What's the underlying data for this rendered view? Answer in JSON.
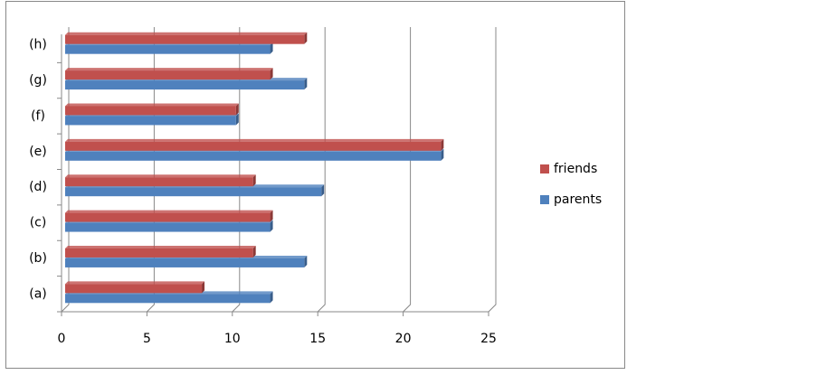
{
  "chart_data": {
    "type": "bar",
    "orientation": "horizontal",
    "categories": [
      "(a)",
      "(b)",
      "(c)",
      "(d)",
      "(e)",
      "(f)",
      "(g)",
      "(h)"
    ],
    "series": [
      {
        "name": "parents",
        "color": "#4f81bd",
        "values": [
          12,
          14,
          12,
          15,
          22,
          10,
          14,
          12
        ]
      },
      {
        "name": "friends",
        "color": "#c0504d",
        "values": [
          8,
          11,
          12,
          11,
          22,
          10,
          12,
          14
        ]
      }
    ],
    "xlim": [
      0,
      25
    ],
    "xticks": [
      0,
      5,
      10,
      15,
      20,
      25
    ],
    "grid": true,
    "legend": "right"
  }
}
